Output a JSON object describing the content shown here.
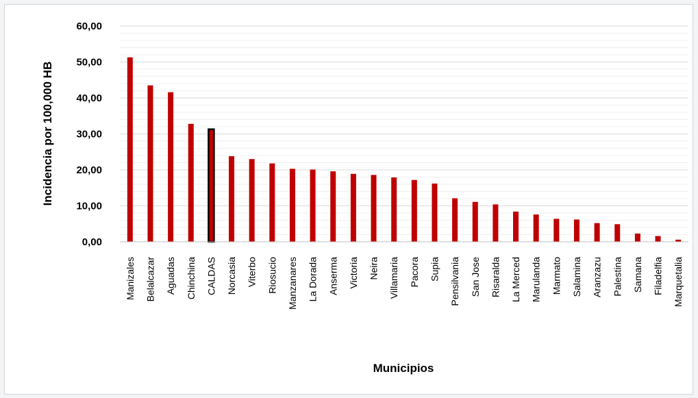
{
  "chart_data": {
    "type": "bar",
    "title": "",
    "xlabel": "Municipios",
    "ylabel": "Incidencia por 100,000 HB",
    "ylim": [
      0,
      60
    ],
    "yticks": [
      "0,00",
      "10,00",
      "20,00",
      "30,00",
      "40,00",
      "50,00",
      "60,00"
    ],
    "grid": true,
    "legend": "none",
    "bar_color": "#c00000",
    "highlight_color": "#000000",
    "highlight_category": "CALDAS",
    "categories": [
      "Manizales",
      "Belalcazar",
      "Aguadas",
      "Chinchina",
      "CALDAS",
      "Norcasia",
      "Viterbo",
      "Riosucio",
      "Manzanares",
      "La Dorada",
      "Anserma",
      "Victoria",
      "Neira",
      "Villamaria",
      "Pacora",
      "Supia",
      "Pensilvania",
      "San Jose",
      "Risaralda",
      "La Merced",
      "Marulanda",
      "Marmato",
      "Salamina",
      "Aranzazu",
      "Palestina",
      "Samana",
      "Filadelfia",
      "Marquetalia"
    ],
    "values": [
      51.3,
      43.5,
      41.6,
      32.8,
      31.3,
      23.8,
      23.0,
      21.8,
      20.3,
      20.1,
      19.6,
      18.9,
      18.6,
      17.9,
      17.2,
      16.2,
      12.1,
      11.1,
      10.4,
      8.4,
      7.6,
      6.4,
      6.2,
      5.2,
      4.9,
      2.3,
      1.6,
      0.6
    ]
  }
}
